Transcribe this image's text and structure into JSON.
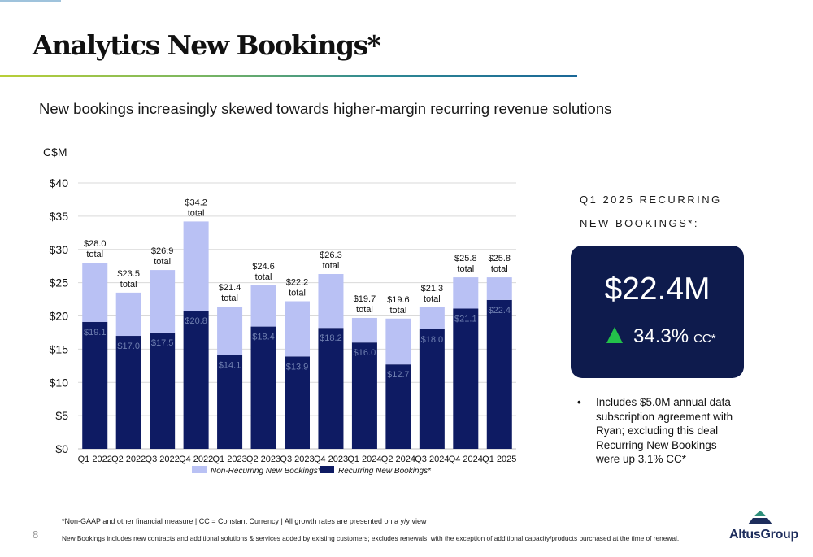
{
  "header": {
    "title": "Analytics New Bookings*",
    "subtitle": "New bookings increasingly skewed towards higher-margin recurring revenue solutions"
  },
  "chart_data": {
    "type": "bar",
    "stacked": true,
    "ylabel": "C$M",
    "ylim": [
      0,
      40
    ],
    "yticks": [
      "$0",
      "$5",
      "$10",
      "$15",
      "$20",
      "$25",
      "$30",
      "$35",
      "$40"
    ],
    "grid": true,
    "legend_position": "bottom",
    "categories": [
      "Q1 2022",
      "Q2 2022",
      "Q3 2022",
      "Q4 2022",
      "Q1 2023",
      "Q2 2023",
      "Q3 2023",
      "Q4 2023",
      "Q1 2024",
      "Q2 2024",
      "Q3 2024",
      "Q4 2024",
      "Q1 2025"
    ],
    "series": [
      {
        "name": "Recurring New Bookings*",
        "color": "#0e1b63",
        "values": [
          19.1,
          17.0,
          17.5,
          20.8,
          14.1,
          18.4,
          13.9,
          18.2,
          16.0,
          12.7,
          18.0,
          21.1,
          22.4
        ],
        "labels": [
          "$19.1",
          "$17.0",
          "$17.5",
          "$20.8",
          "$14.1",
          "$18.4",
          "$13.9",
          "$18.2",
          "$16.0",
          "$12.7",
          "$18.0",
          "$21.1",
          "$22.4"
        ]
      },
      {
        "name": "Non-Recurring New Bookings*",
        "color": "#b9c1f4",
        "values": [
          8.9,
          6.5,
          9.4,
          13.4,
          7.3,
          6.2,
          8.3,
          8.1,
          3.7,
          6.9,
          3.3,
          4.7,
          3.4
        ]
      }
    ],
    "totals": [
      28.0,
      23.5,
      26.9,
      34.2,
      21.4,
      24.6,
      22.2,
      26.3,
      19.7,
      19.6,
      21.3,
      25.8,
      25.8
    ],
    "total_labels": [
      "$28.0",
      "$23.5",
      "$26.9",
      "$34.2",
      "$21.4",
      "$24.6",
      "$22.2",
      "$26.3",
      "$19.7",
      "$19.6",
      "$21.3",
      "$25.8",
      "$25.8"
    ],
    "total_suffix": "total",
    "legend": [
      "Non-Recurring New Bookings*",
      "Recurring New Bookings*"
    ]
  },
  "sidebar": {
    "title_lines": [
      "Q1 2025 RECURRING",
      "NEW BOOKINGS*:"
    ],
    "kpi_value": "$22.4M",
    "kpi_growth": "34.3%",
    "kpi_growth_unit": "CC*",
    "kpi_icon": "triangle-up-icon",
    "notes": [
      "Includes $5.0M annual data subscription agreement with Ryan; excluding this deal Recurring New Bookings were up 3.1% CC*"
    ],
    "bullet": "•"
  },
  "footer": {
    "page_number": "8",
    "footnote_1": "*Non-GAAP and other financial measure | CC = Constant Currency  |  All growth rates are presented on a y/y view",
    "footnote_2": "New Bookings includes new contracts and additional solutions & services added by existing customers; excludes renewals, with the exception of additional capacity/products purchased at the time of renewal.",
    "logo_text": "AltusGroup"
  },
  "colors": {
    "navy": "#0e1b4d",
    "growth_green": "#23c24a",
    "rule_start": "#b9cf37",
    "rule_end": "#1a6797"
  }
}
